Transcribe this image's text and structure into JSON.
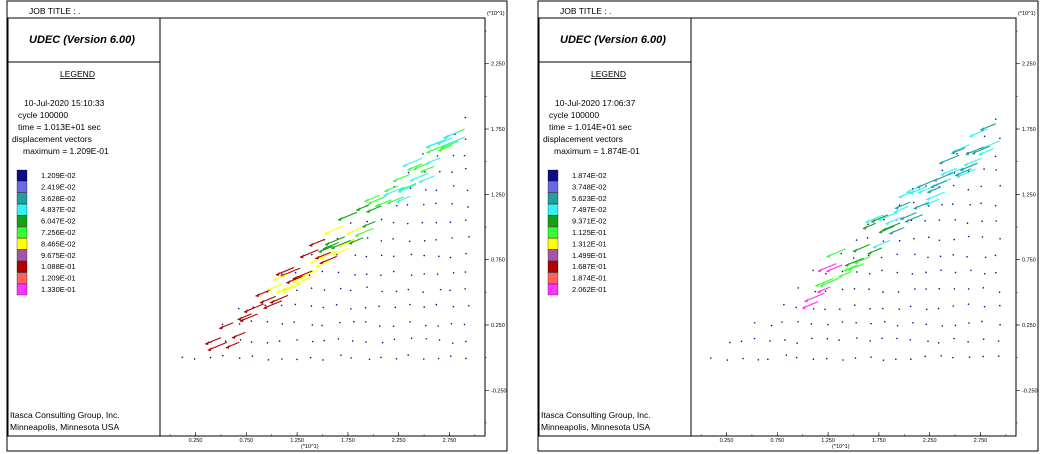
{
  "plots": [
    {
      "job_title": "JOB TITLE : .",
      "program": "UDEC (Version 6.00)",
      "legend_heading": "LEGEND",
      "date": "10-Jul-2020  15:10:33",
      "cycle": "cycle   100000",
      "time": "time  =  1.013E+01 sec",
      "vector_label": "displacement vectors",
      "maximum": "maximum =    1.209E-01",
      "legend_entries": [
        "1.209E-02",
        "2.419E-02",
        "3.628E-02",
        "4.837E-02",
        "6.047E-02",
        "7.256E-02",
        "8.465E-02",
        "9.675E-02",
        "1.088E-01",
        "1.209E-01",
        "1.330E-01"
      ],
      "company_line1": "Itasca Consulting Group, Inc.",
      "company_line2": "Minneapolis, Minnesota  USA",
      "axis_multiplier": "(*10^1)"
    },
    {
      "job_title": "JOB TITLE : .",
      "program": "UDEC (Version 6.00)",
      "legend_heading": "LEGEND",
      "date": "10-Jul-2020  17:06:37",
      "cycle": "cycle   100000",
      "time": "time  =  1.014E+01 sec",
      "vector_label": "displacement vectors",
      "maximum": "maximum =    1.874E-01",
      "legend_entries": [
        "1.874E-02",
        "3.748E-02",
        "5.623E-02",
        "7.497E-02",
        "9.371E-02",
        "1.125E-01",
        "1.312E-01",
        "1.499E-01",
        "1.687E-01",
        "1.874E-01",
        "2.062E-01"
      ],
      "company_line1": "Itasca Consulting Group, Inc.",
      "company_line2": "Minneapolis, Minnesota  USA",
      "axis_multiplier": "(*10^1)"
    }
  ],
  "legend_colors": [
    "#0d0d8a",
    "#6a6ae0",
    "#229e9e",
    "#33f2f2",
    "#15a015",
    "#33ff33",
    "#ffff00",
    "#a456a4",
    "#b00000",
    "#ff6060",
    "#ff33ff"
  ],
  "chart_data": [
    {
      "type": "scatter",
      "title": "",
      "x_ticks": [
        "0.250",
        "0.750",
        "1.250",
        "1.750",
        "2.250",
        "2.750"
      ],
      "y_ticks": [
        "2.250",
        "1.750",
        "1.250",
        "0.750",
        "0.250",
        "-0.250"
      ],
      "xlim": [
        -0.1,
        3.1
      ],
      "ylim": [
        -0.6,
        2.6
      ],
      "units": "(*10^1)",
      "slope_points": [
        [
          0.1,
          0.0
        ],
        [
          2.95,
          0.0
        ],
        [
          2.95,
          1.87
        ]
      ],
      "vector_bands": [
        {
          "x_range": [
            0.5,
            1.7
          ],
          "color_index": 8
        },
        {
          "x_range": [
            1.1,
            1.9
          ],
          "color_index": 6
        },
        {
          "x_range": [
            1.6,
            2.1
          ],
          "color_index": 4
        },
        {
          "x_range": [
            2.0,
            2.95
          ],
          "color_index": 5
        },
        {
          "x_range": [
            2.3,
            2.95
          ],
          "color_index": 3
        }
      ]
    },
    {
      "type": "scatter",
      "title": "",
      "x_ticks": [
        "0.250",
        "0.750",
        "1.250",
        "1.750",
        "2.250",
        "2.750"
      ],
      "y_ticks": [
        "2.250",
        "1.750",
        "1.250",
        "0.750",
        "0.250",
        "-0.250"
      ],
      "xlim": [
        -0.1,
        3.1
      ],
      "ylim": [
        -0.6,
        2.6
      ],
      "units": "(*10^1)",
      "slope_points": [
        [
          0.1,
          0.0
        ],
        [
          2.95,
          0.0
        ],
        [
          2.95,
          1.87
        ]
      ],
      "vector_bands": [
        {
          "x_range": [
            1.15,
            1.45
          ],
          "color_index": 10
        },
        {
          "x_range": [
            1.3,
            1.7
          ],
          "color_index": 5
        },
        {
          "x_range": [
            1.6,
            2.0
          ],
          "color_index": 4
        },
        {
          "x_range": [
            1.8,
            2.95
          ],
          "color_index": 3
        },
        {
          "x_range": [
            2.0,
            2.95
          ],
          "color_index": 2
        }
      ]
    }
  ]
}
